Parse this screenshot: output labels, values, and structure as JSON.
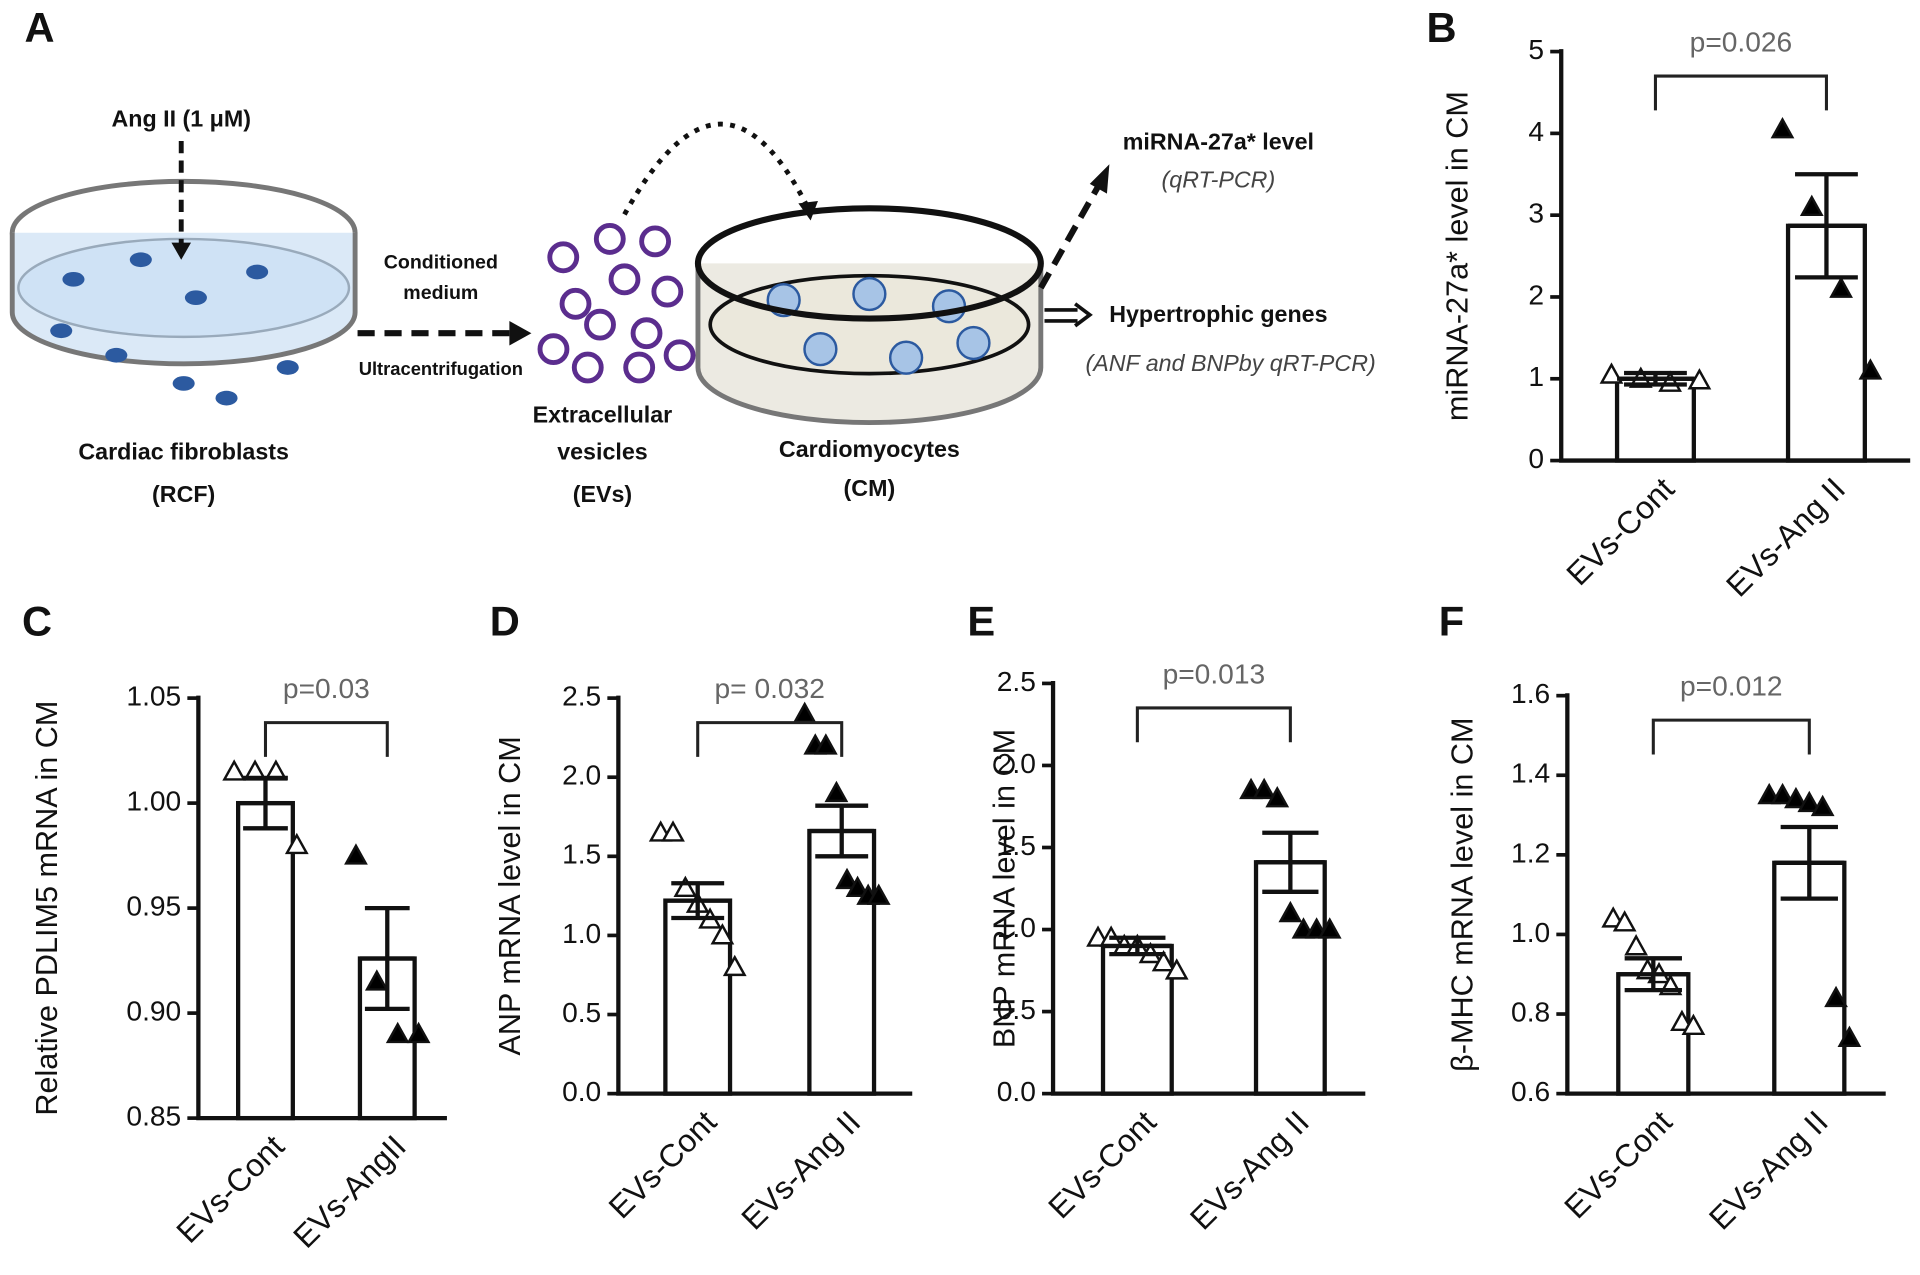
{
  "diagram": {
    "label": "A",
    "stimulus": "Ang II (1 μM)",
    "conditioned": "Conditioned",
    "medium": "medium",
    "ultracentrifugation": "Ultracentrifugation",
    "fibroblasts": "Cardiac fibroblasts",
    "fibroblasts_abbr": "(RCF)",
    "vesicles_1": "Extracellular",
    "vesicles_2": "vesicles",
    "vesicles_abbr": "(EVs)",
    "cardiomyocytes": "Cardiomyocytes",
    "cardiomyocytes_abbr": "(CM)",
    "readout_1": "miRNA-27a* level",
    "readout_1_method": "(qRT-PCR)",
    "readout_2": "Hypertrophic genes",
    "readout_2_method": "(ANF and BNPby qRT-PCR)"
  },
  "chart_data": [
    {
      "type": "bar",
      "panel": "B",
      "ylabel": "miRNA-27a* level in CM",
      "annotation": "p=0.026",
      "categories": [
        "EVs-Cont",
        "EVs-Ang II"
      ],
      "values": [
        1.0,
        2.87
      ],
      "errors": [
        0.07,
        0.63
      ],
      "points": [
        [
          1.05,
          1.0,
          0.95,
          0.98
        ],
        [
          4.05,
          3.1,
          2.1,
          1.1
        ]
      ],
      "color": "#ffffff",
      "point_colors": [
        "#ffffff",
        "#000000"
      ],
      "ylim": [
        0,
        5
      ],
      "yticks": [
        0,
        1,
        2,
        3,
        4,
        5
      ]
    },
    {
      "type": "bar",
      "panel": "C",
      "ylabel": "Relative PDLIM5 mRNA in CM",
      "annotation": "p=0.03",
      "categories": [
        "EVs-Cont",
        "EVs-AngII"
      ],
      "values": [
        1.0,
        0.926
      ],
      "errors": [
        0.012,
        0.024
      ],
      "points": [
        [
          1.015,
          1.015,
          1.015,
          0.98
        ],
        [
          0.975,
          0.915,
          0.89,
          0.89
        ]
      ],
      "color": "#ffffff",
      "point_colors": [
        "#ffffff",
        "#000000"
      ],
      "ylim": [
        0.85,
        1.05
      ],
      "yticks": [
        0.85,
        {
          "value": 0.9,
          "label": "0.90"
        },
        0.95,
        {
          "value": 1,
          "label": "1.00"
        },
        1.05
      ]
    },
    {
      "type": "bar",
      "panel": "D",
      "ylabel": "ANP mRNA level in CM",
      "annotation": "p= 0.032",
      "categories": [
        "EVs-Cont",
        "EVs-Ang II"
      ],
      "values": [
        1.22,
        1.66
      ],
      "errors": [
        0.11,
        0.16
      ],
      "points": [
        [
          1.65,
          1.65,
          1.3,
          1.2,
          1.1,
          1.0,
          0.8
        ],
        [
          2.4,
          2.2,
          2.2,
          1.9,
          1.35,
          1.3,
          1.25,
          1.25
        ]
      ],
      "color": "#ffffff",
      "point_colors": [
        "#ffffff",
        "#000000"
      ],
      "ylim": [
        0,
        2.5
      ],
      "yticks": [
        {
          "value": 0,
          "label": "0.0"
        },
        0.5,
        {
          "value": 1,
          "label": "1.0"
        },
        1.5,
        {
          "value": 2,
          "label": "2.0"
        },
        2.5
      ]
    },
    {
      "type": "bar",
      "panel": "E",
      "ylabel": "BNP mRNA level in CM",
      "annotation": "p=0.013",
      "categories": [
        "EVs-Cont",
        "EVs-Ang II"
      ],
      "values": [
        0.9,
        1.41
      ],
      "errors": [
        0.05,
        0.18
      ],
      "points": [
        [
          0.95,
          0.95,
          0.9,
          0.9,
          0.85,
          0.8,
          0.75
        ],
        [
          1.85,
          1.85,
          1.8,
          1.1,
          1.0,
          1.0,
          1.0
        ]
      ],
      "color": "#ffffff",
      "point_colors": [
        "#ffffff",
        "#000000"
      ],
      "ylim": [
        0,
        2.5
      ],
      "yticks": [
        {
          "value": 0,
          "label": "0.0"
        },
        0.5,
        {
          "value": 1,
          "label": "1.0"
        },
        1.5,
        {
          "value": 2,
          "label": "2.0"
        },
        2.5
      ]
    },
    {
      "type": "bar",
      "panel": "F",
      "ylabel": "β-MHC mRNA level in CM",
      "annotation": "p=0.012",
      "categories": [
        "EVs-Cont",
        "EVs-Ang II"
      ],
      "values": [
        0.9,
        1.18
      ],
      "errors": [
        0.04,
        0.09
      ],
      "points": [
        [
          1.04,
          1.03,
          0.97,
          0.91,
          0.9,
          0.87,
          0.78,
          0.77
        ],
        [
          1.35,
          1.35,
          1.34,
          1.33,
          1.32,
          0.84,
          0.74
        ]
      ],
      "color": "#ffffff",
      "point_colors": [
        "#ffffff",
        "#000000"
      ],
      "ylim": [
        0.6,
        1.6
      ],
      "yticks": [
        0.6,
        0.8,
        {
          "value": 1,
          "label": "1.0"
        },
        1.2,
        1.4,
        1.6
      ]
    }
  ]
}
